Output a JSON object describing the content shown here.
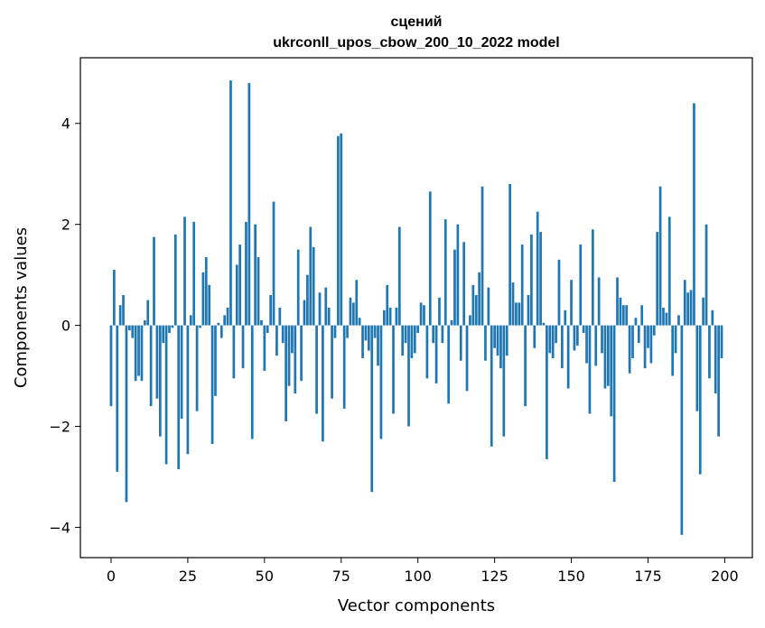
{
  "chart_data": {
    "type": "bar",
    "title_line1": "сцений",
    "title_line2": "ukrconll_upos_cbow_200_10_2022 model",
    "xlabel": "Vector components",
    "ylabel": "Components values",
    "xlim": [
      -10,
      209
    ],
    "ylim": [
      -4.6,
      5.3
    ],
    "xticks": [
      0,
      25,
      50,
      75,
      100,
      125,
      150,
      175,
      200
    ],
    "yticks": [
      -4,
      -2,
      0,
      2,
      4
    ],
    "ytick_labels": [
      "−4",
      "−2",
      "0",
      "2",
      "4"
    ],
    "grid": false,
    "bar_color": "#1f77b4",
    "x": [
      0,
      1,
      2,
      3,
      4,
      5,
      6,
      7,
      8,
      9,
      10,
      11,
      12,
      13,
      14,
      15,
      16,
      17,
      18,
      19,
      20,
      21,
      22,
      23,
      24,
      25,
      26,
      27,
      28,
      29,
      30,
      31,
      32,
      33,
      34,
      35,
      36,
      37,
      38,
      39,
      40,
      41,
      42,
      43,
      44,
      45,
      46,
      47,
      48,
      49,
      50,
      51,
      52,
      53,
      54,
      55,
      56,
      57,
      58,
      59,
      60,
      61,
      62,
      63,
      64,
      65,
      66,
      67,
      68,
      69,
      70,
      71,
      72,
      73,
      74,
      75,
      76,
      77,
      78,
      79,
      80,
      81,
      82,
      83,
      84,
      85,
      86,
      87,
      88,
      89,
      90,
      91,
      92,
      93,
      94,
      95,
      96,
      97,
      98,
      99,
      100,
      101,
      102,
      103,
      104,
      105,
      106,
      107,
      108,
      109,
      110,
      111,
      112,
      113,
      114,
      115,
      116,
      117,
      118,
      119,
      120,
      121,
      122,
      123,
      124,
      125,
      126,
      127,
      128,
      129,
      130,
      131,
      132,
      133,
      134,
      135,
      136,
      137,
      138,
      139,
      140,
      141,
      142,
      143,
      144,
      145,
      146,
      147,
      148,
      149,
      150,
      151,
      152,
      153,
      154,
      155,
      156,
      157,
      158,
      159,
      160,
      161,
      162,
      163,
      164,
      165,
      166,
      167,
      168,
      169,
      170,
      171,
      172,
      173,
      174,
      175,
      176,
      177,
      178,
      179,
      180,
      181,
      182,
      183,
      184,
      185,
      186,
      187,
      188,
      189,
      190,
      191,
      192,
      193,
      194,
      195,
      196,
      197,
      198,
      199
    ],
    "values": [
      -1.6,
      1.1,
      -2.9,
      0.4,
      0.6,
      -3.5,
      -0.1,
      -0.25,
      -1.1,
      -1.0,
      -1.1,
      0.1,
      0.5,
      -1.6,
      1.75,
      -1.45,
      -2.2,
      -0.35,
      -2.75,
      -0.15,
      -0.05,
      1.8,
      -2.85,
      -1.85,
      2.15,
      -2.55,
      0.2,
      2.05,
      -1.7,
      -0.05,
      1.05,
      1.35,
      0.8,
      -2.35,
      -1.4,
      0.05,
      -0.25,
      0.2,
      0.35,
      4.85,
      -1.05,
      1.2,
      1.6,
      -0.85,
      2.05,
      4.8,
      -2.25,
      2.0,
      1.35,
      0.1,
      -0.9,
      -0.15,
      0.6,
      2.45,
      -0.6,
      0.35,
      -0.35,
      -1.9,
      -1.2,
      -0.55,
      -1.35,
      1.5,
      -1.1,
      0.5,
      1.0,
      1.95,
      1.55,
      -1.75,
      0.65,
      -2.3,
      0.75,
      0.35,
      -1.45,
      -0.25,
      3.75,
      3.8,
      -1.65,
      -0.25,
      0.55,
      0.45,
      0.9,
      0.15,
      -0.65,
      -0.3,
      -0.5,
      -3.3,
      -0.25,
      -0.8,
      -2.25,
      0.3,
      0.8,
      0.35,
      -1.75,
      0.35,
      1.95,
      -0.6,
      -0.35,
      -2.0,
      -0.65,
      -0.55,
      -0.15,
      0.45,
      0.4,
      -1.05,
      2.65,
      -0.35,
      -1.15,
      0.55,
      -0.35,
      2.1,
      -1.55,
      0.1,
      1.5,
      2.0,
      -0.7,
      1.65,
      -1.3,
      0.2,
      0.8,
      0.6,
      1.05,
      2.75,
      -0.7,
      0.75,
      -2.4,
      -0.45,
      -0.6,
      -0.85,
      -2.2,
      -0.6,
      2.8,
      0.85,
      0.45,
      0.45,
      1.6,
      -1.6,
      0.6,
      1.8,
      -0.45,
      2.25,
      1.85,
      0.05,
      -2.65,
      -0.55,
      -0.65,
      -0.35,
      1.3,
      -0.85,
      0.3,
      -1.25,
      0.9,
      -0.5,
      -0.4,
      1.6,
      -0.15,
      -0.75,
      -1.75,
      1.9,
      -0.8,
      0.95,
      -0.55,
      -1.25,
      -1.2,
      -1.8,
      -3.1,
      0.95,
      0.55,
      0.4,
      0.4,
      -0.95,
      -0.65,
      0.15,
      -0.35,
      0.4,
      -0.85,
      -0.45,
      -0.75,
      -0.2,
      1.85,
      2.75,
      0.35,
      0.25,
      2.15,
      -1.0,
      -0.55,
      0.2,
      -4.15,
      0.9,
      0.65,
      0.7,
      4.4,
      -1.7,
      -2.95,
      0.55,
      2.0,
      -1.05,
      0.3,
      -1.35,
      -2.2,
      -0.65
    ]
  }
}
